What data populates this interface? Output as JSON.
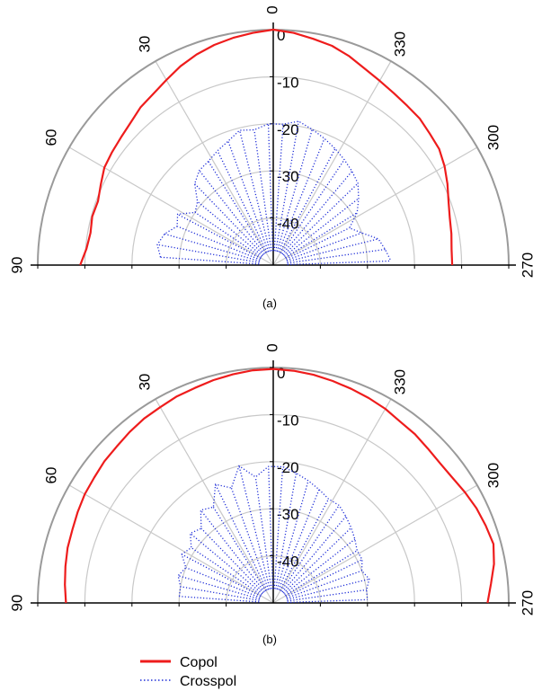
{
  "chart_data": [
    {
      "type": "polar-line",
      "caption": "(a)",
      "angle_labels": [
        "0",
        "30",
        "60",
        "90",
        "330",
        "300",
        "270"
      ],
      "radial_labels": [
        "0",
        "-10",
        "-20",
        "-30",
        "-40"
      ],
      "rlim": [
        -50,
        0
      ],
      "angle_range_deg": [
        -90,
        90
      ],
      "grid": true,
      "series": [
        {
          "name": "Copol",
          "color": "#ee1c1c",
          "points": [
            {
              "angle": 0,
              "value": 0
            },
            {
              "angle": 5,
              "value": -0.5
            },
            {
              "angle": 10,
              "value": -1
            },
            {
              "angle": 15,
              "value": -1.6
            },
            {
              "angle": 20,
              "value": -2.4
            },
            {
              "angle": 25,
              "value": -3.4
            },
            {
              "angle": 30,
              "value": -4.6
            },
            {
              "angle": 35,
              "value": -5.6
            },
            {
              "angle": 40,
              "value": -6.2
            },
            {
              "angle": 45,
              "value": -7.2
            },
            {
              "angle": 50,
              "value": -7.8
            },
            {
              "angle": 55,
              "value": -8.2
            },
            {
              "angle": 60,
              "value": -8.6
            },
            {
              "angle": 65,
              "value": -9.6
            },
            {
              "angle": 70,
              "value": -10.4
            },
            {
              "angle": 75,
              "value": -10.2
            },
            {
              "angle": 80,
              "value": -10.6
            },
            {
              "angle": 85,
              "value": -10.2
            },
            {
              "angle": 90,
              "value": -9
            },
            {
              "angle": -5,
              "value": -0.5
            },
            {
              "angle": -10,
              "value": -1.2
            },
            {
              "angle": -15,
              "value": -1.8
            },
            {
              "angle": -20,
              "value": -2.8
            },
            {
              "angle": -25,
              "value": -4
            },
            {
              "angle": -30,
              "value": -4.8
            },
            {
              "angle": -35,
              "value": -5.4
            },
            {
              "angle": -40,
              "value": -5.8
            },
            {
              "angle": -45,
              "value": -6
            },
            {
              "angle": -50,
              "value": -6.6
            },
            {
              "angle": -55,
              "value": -7
            },
            {
              "angle": -60,
              "value": -8
            },
            {
              "angle": -65,
              "value": -9.2
            },
            {
              "angle": -70,
              "value": -10.4
            },
            {
              "angle": -75,
              "value": -11.2
            },
            {
              "angle": -80,
              "value": -11.6
            },
            {
              "angle": -85,
              "value": -12
            },
            {
              "angle": -90,
              "value": -12
            }
          ]
        },
        {
          "name": "Crosspol",
          "color": "#1f2ed8",
          "points": [
            {
              "angle": 2,
              "value": -20
            },
            {
              "angle": 8,
              "value": -21
            },
            {
              "angle": 14,
              "value": -20.5
            },
            {
              "angle": 20,
              "value": -22
            },
            {
              "angle": 26,
              "value": -23
            },
            {
              "angle": 32,
              "value": -24
            },
            {
              "angle": 38,
              "value": -24.5
            },
            {
              "angle": 44,
              "value": -26
            },
            {
              "angle": 50,
              "value": -29
            },
            {
              "angle": 56,
              "value": -30
            },
            {
              "angle": 62,
              "value": -27
            },
            {
              "angle": 68,
              "value": -28
            },
            {
              "angle": 74,
              "value": -26
            },
            {
              "angle": 80,
              "value": -25
            },
            {
              "angle": 86,
              "value": -26
            },
            {
              "angle": -4,
              "value": -20
            },
            {
              "angle": -10,
              "value": -19
            },
            {
              "angle": -16,
              "value": -20
            },
            {
              "angle": -22,
              "value": -21
            },
            {
              "angle": -28,
              "value": -22
            },
            {
              "angle": -34,
              "value": -23
            },
            {
              "angle": -40,
              "value": -24
            },
            {
              "angle": -46,
              "value": -25
            },
            {
              "angle": -52,
              "value": -27
            },
            {
              "angle": -58,
              "value": -29
            },
            {
              "angle": -64,
              "value": -32
            },
            {
              "angle": -70,
              "value": -30
            },
            {
              "angle": -76,
              "value": -27
            },
            {
              "angle": -82,
              "value": -26
            },
            {
              "angle": -88,
              "value": -25
            }
          ]
        }
      ]
    },
    {
      "type": "polar-line",
      "caption": "(b)",
      "angle_labels": [
        "0",
        "30",
        "60",
        "90",
        "330",
        "300",
        "270"
      ],
      "radial_labels": [
        "0",
        "-10",
        "-20",
        "-30",
        "-40"
      ],
      "rlim": [
        -50,
        0
      ],
      "angle_range_deg": [
        -90,
        90
      ],
      "grid": true,
      "series": [
        {
          "name": "Copol",
          "color": "#ee1c1c",
          "points": [
            {
              "angle": 0,
              "value": -0.3
            },
            {
              "angle": 5,
              "value": -0.4
            },
            {
              "angle": 10,
              "value": -0.7
            },
            {
              "angle": 15,
              "value": -1
            },
            {
              "angle": 20,
              "value": -1.4
            },
            {
              "angle": 25,
              "value": -1.6
            },
            {
              "angle": 30,
              "value": -2
            },
            {
              "angle": 35,
              "value": -2.2
            },
            {
              "angle": 40,
              "value": -2.6
            },
            {
              "angle": 45,
              "value": -3
            },
            {
              "angle": 50,
              "value": -3.2
            },
            {
              "angle": 55,
              "value": -3.6
            },
            {
              "angle": 60,
              "value": -3.8
            },
            {
              "angle": 65,
              "value": -4.2
            },
            {
              "angle": 70,
              "value": -4.6
            },
            {
              "angle": 75,
              "value": -4.8
            },
            {
              "angle": 80,
              "value": -5.2
            },
            {
              "angle": 85,
              "value": -5.6
            },
            {
              "angle": 90,
              "value": -6
            },
            {
              "angle": -5,
              "value": -0.5
            },
            {
              "angle": -10,
              "value": -0.8
            },
            {
              "angle": -15,
              "value": -1.2
            },
            {
              "angle": -20,
              "value": -1.6
            },
            {
              "angle": -25,
              "value": -2
            },
            {
              "angle": -30,
              "value": -2.4
            },
            {
              "angle": -35,
              "value": -3
            },
            {
              "angle": -40,
              "value": -3.2
            },
            {
              "angle": -45,
              "value": -3.6
            },
            {
              "angle": -50,
              "value": -3.8
            },
            {
              "angle": -55,
              "value": -3.6
            },
            {
              "angle": -60,
              "value": -3
            },
            {
              "angle": -65,
              "value": -2.4
            },
            {
              "angle": -70,
              "value": -2
            },
            {
              "angle": -75,
              "value": -1.6
            },
            {
              "angle": -80,
              "value": -2.4
            },
            {
              "angle": -85,
              "value": -3.6
            },
            {
              "angle": -90,
              "value": -4.5
            }
          ]
        },
        {
          "name": "Crosspol",
          "color": "#1f2ed8",
          "points": [
            {
              "angle": 2,
              "value": -21
            },
            {
              "angle": 8,
              "value": -23
            },
            {
              "angle": 14,
              "value": -20
            },
            {
              "angle": 20,
              "value": -24
            },
            {
              "angle": 26,
              "value": -22
            },
            {
              "angle": 32,
              "value": -26
            },
            {
              "angle": 38,
              "value": -25
            },
            {
              "angle": 44,
              "value": -28
            },
            {
              "angle": 50,
              "value": -27
            },
            {
              "angle": 56,
              "value": -29
            },
            {
              "angle": 62,
              "value": -28
            },
            {
              "angle": 68,
              "value": -30
            },
            {
              "angle": 74,
              "value": -29
            },
            {
              "angle": 80,
              "value": -30
            },
            {
              "angle": 86,
              "value": -30
            },
            {
              "angle": -4,
              "value": -21
            },
            {
              "angle": -10,
              "value": -22
            },
            {
              "angle": -16,
              "value": -23
            },
            {
              "angle": -22,
              "value": -24
            },
            {
              "angle": -28,
              "value": -25
            },
            {
              "angle": -34,
              "value": -25
            },
            {
              "angle": -40,
              "value": -26
            },
            {
              "angle": -46,
              "value": -27
            },
            {
              "angle": -52,
              "value": -28
            },
            {
              "angle": -58,
              "value": -29
            },
            {
              "angle": -64,
              "value": -29
            },
            {
              "angle": -70,
              "value": -30
            },
            {
              "angle": -76,
              "value": -29
            },
            {
              "angle": -82,
              "value": -30
            },
            {
              "angle": -88,
              "value": -30
            }
          ]
        }
      ]
    }
  ],
  "legend": {
    "items": [
      {
        "label": "Copol",
        "color": "#ee1c1c",
        "style": "solid"
      },
      {
        "label": "Crosspol",
        "color": "#1f2ed8",
        "style": "dotted"
      }
    ]
  }
}
